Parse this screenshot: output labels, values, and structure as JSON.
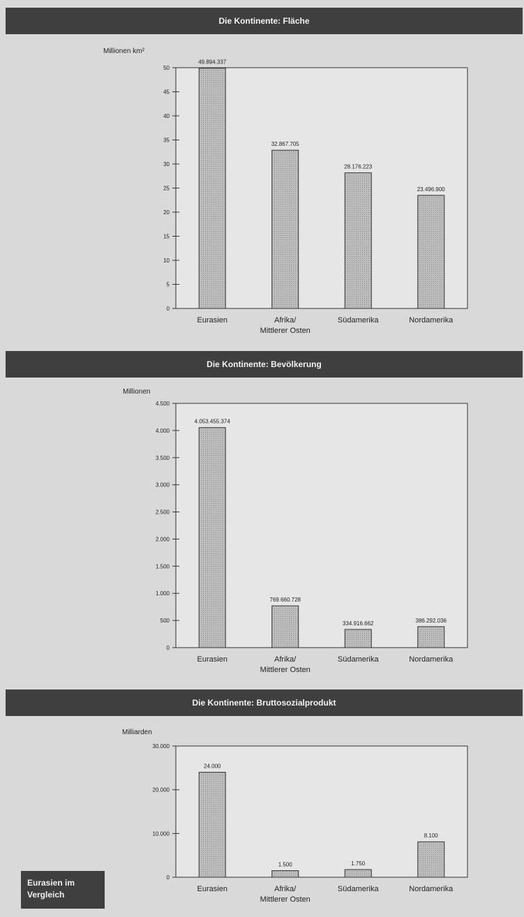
{
  "corner_label": {
    "line1": "Eurasien im",
    "line2": "Vergleich"
  },
  "chart_data": [
    {
      "type": "bar",
      "title": "Die Kontinente: Fläche",
      "ylabel": "Millionen km²",
      "xlabel": "",
      "categories": [
        [
          "Eurasien"
        ],
        [
          "Afrika/",
          "Mittlerer Osten"
        ],
        [
          "Südamerika"
        ],
        [
          "Nordamerika"
        ]
      ],
      "values": [
        49.894337,
        32.867705,
        28.176223,
        23.4969
      ],
      "data_labels": [
        "49.894.337",
        "32.867.705",
        "28.176.223",
        "23.496.900"
      ],
      "ylim": [
        0,
        50
      ],
      "yticks": [
        0,
        5,
        10,
        15,
        20,
        25,
        30,
        35,
        40,
        45,
        50
      ],
      "ytick_labels": [
        "0",
        "5",
        "10",
        "15",
        "20",
        "25",
        "30",
        "35",
        "40",
        "45",
        "50"
      ],
      "grid": false,
      "bar_color": "#bdbdbd"
    },
    {
      "type": "bar",
      "title": "Die Kontinente: Bevölkerung",
      "ylabel": "Millionen",
      "xlabel": "",
      "categories": [
        [
          "Eurasien"
        ],
        [
          "Afrika/",
          "Mittlerer Osten"
        ],
        [
          "Südamerika"
        ],
        [
          "Nordamerika"
        ]
      ],
      "values": [
        4053.455374,
        769.660728,
        334.916662,
        386.292036
      ],
      "data_labels": [
        "4.053.455.374",
        "769.660.728",
        "334.916.662",
        "386.292.036"
      ],
      "ylim": [
        0,
        4500
      ],
      "yticks": [
        0,
        500,
        1000,
        1500,
        2000,
        2500,
        3000,
        3500,
        4000,
        4500
      ],
      "ytick_labels": [
        "0",
        "500",
        "1.000",
        "1.500",
        "2.000",
        "2.500",
        "3.000",
        "3.500",
        "4.000",
        "4.500"
      ],
      "grid": false,
      "bar_color": "#bdbdbd"
    },
    {
      "type": "bar",
      "title": "Die Kontinente: Bruttosozialprodukt",
      "ylabel": "Milliarden",
      "xlabel": "",
      "categories": [
        [
          "Eurasien"
        ],
        [
          "Afrika/",
          "Mittlerer Osten"
        ],
        [
          "Südamerika"
        ],
        [
          "Nordamerika"
        ]
      ],
      "values": [
        24000,
        1500,
        1750,
        8100
      ],
      "data_labels": [
        "24.000",
        "1.500",
        "1.750",
        "8.100"
      ],
      "ylim": [
        0,
        30000
      ],
      "yticks": [
        0,
        10000,
        20000,
        30000
      ],
      "ytick_labels": [
        "0",
        "10.000",
        "20.000",
        "30.000"
      ],
      "grid": false,
      "bar_color": "#bdbdbd"
    }
  ]
}
